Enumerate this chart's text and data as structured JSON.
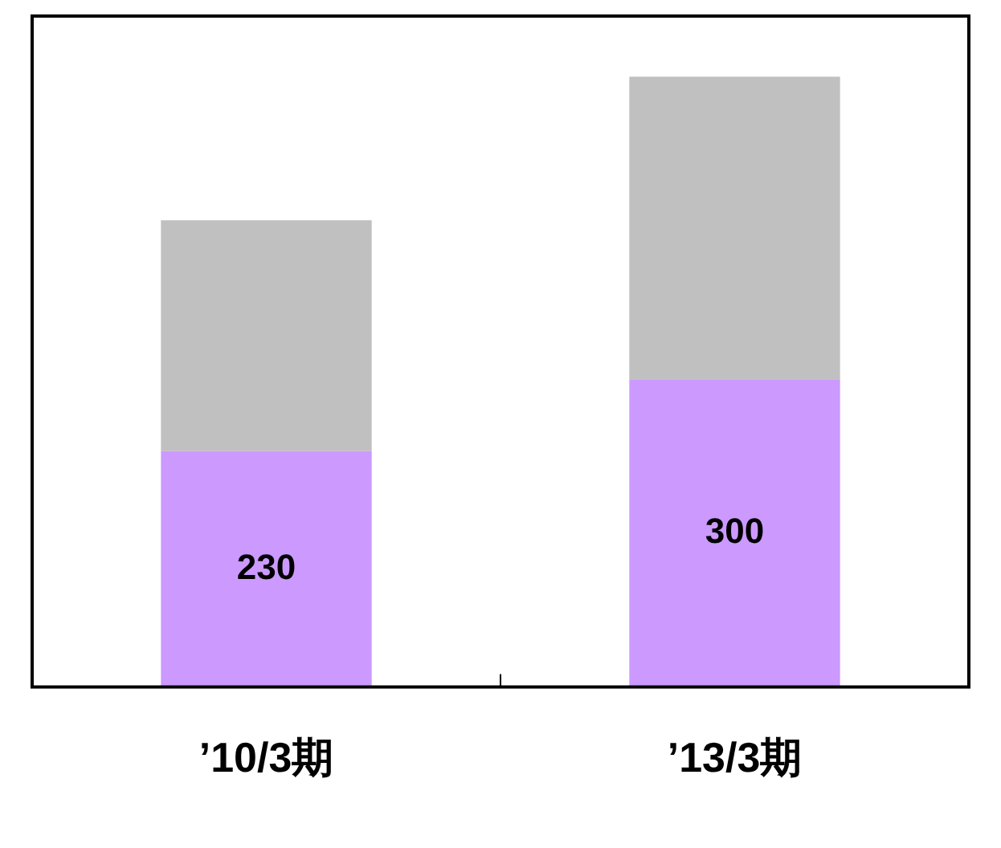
{
  "chart_data": {
    "type": "bar",
    "stacked": true,
    "categories": [
      "’10/3期",
      "’13/3期"
    ],
    "ylim": [
      0,
      654
    ],
    "grid": false,
    "legend": false,
    "series": [
      {
        "color": "#cc99ff",
        "values": [
          230,
          300
        ],
        "value_labels": [
          "230",
          "300"
        ]
      },
      {
        "color": "#c0c0c0",
        "values": [
          225,
          295
        ]
      }
    ]
  }
}
